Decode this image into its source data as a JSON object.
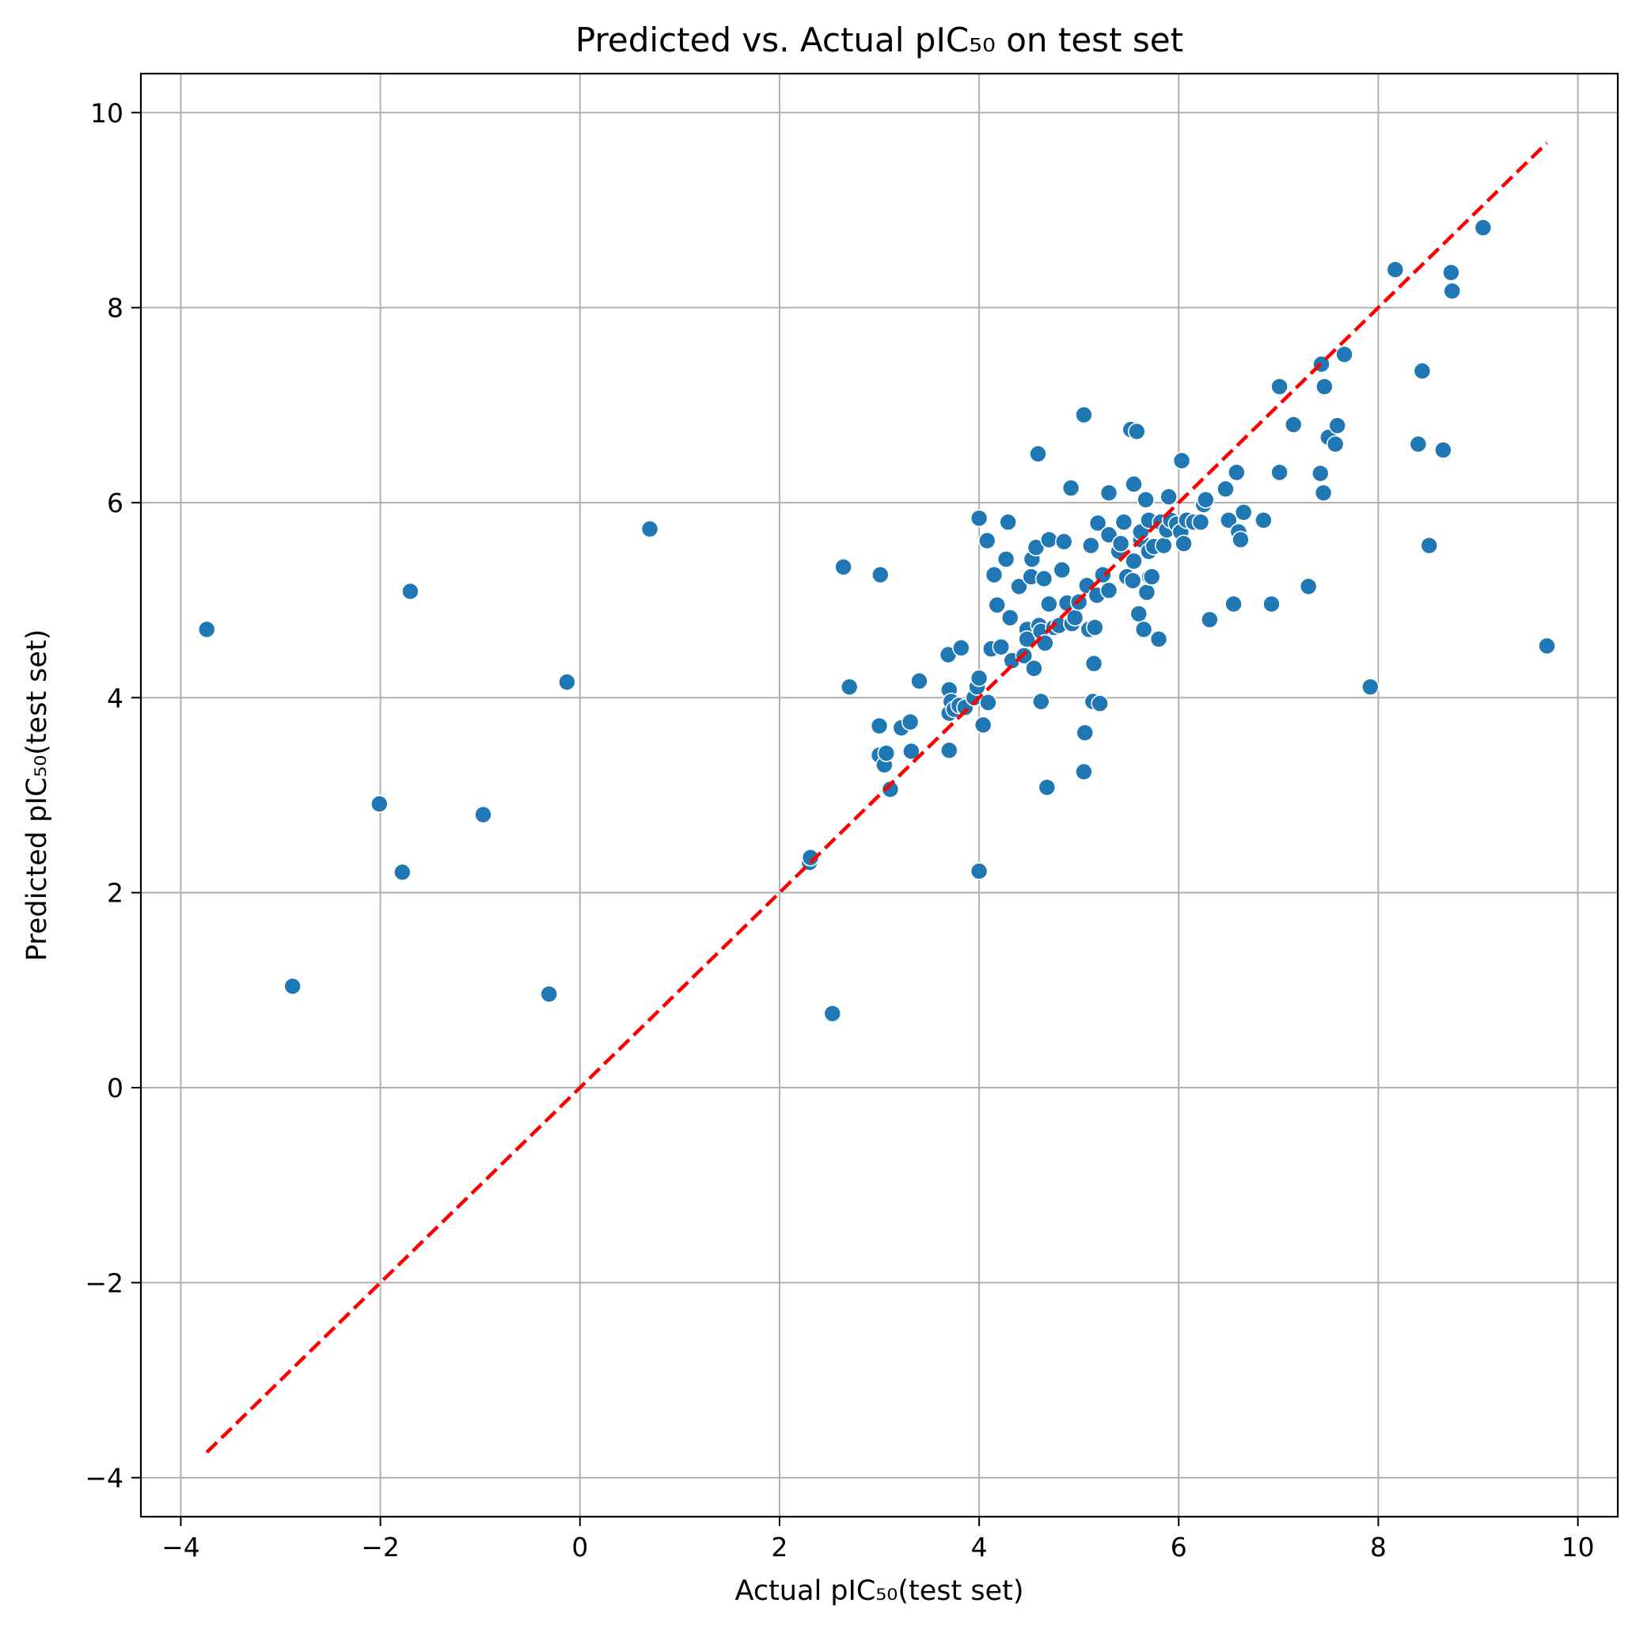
{
  "chart_data": {
    "type": "scatter",
    "title": "Predicted vs. Actual pIC₅₀ on test set",
    "xlabel": "Actual pIC₅₀(test set)",
    "ylabel": "Predicted pIC₅₀(test set)",
    "xlim": [
      -4.4,
      10.4
    ],
    "ylim": [
      -4.4,
      10.4
    ],
    "xticks": [
      -4,
      -2,
      0,
      2,
      4,
      6,
      8,
      10
    ],
    "yticks": [
      -4,
      -2,
      0,
      2,
      4,
      6,
      8,
      10
    ],
    "xtick_labels": [
      "−4",
      "−2",
      "0",
      "2",
      "4",
      "6",
      "8",
      "10"
    ],
    "ytick_labels": [
      "−4",
      "−2",
      "0",
      "2",
      "4",
      "6",
      "8",
      "10"
    ],
    "grid": true,
    "marker_color": "#1f77b4",
    "reference_line": {
      "style": "dashed",
      "color": "#ff0000",
      "x": [
        -3.74,
        9.69
      ],
      "y": [
        -3.74,
        9.69
      ]
    },
    "points": [
      [
        -3.74,
        4.7
      ],
      [
        -2.88,
        1.04
      ],
      [
        -2.01,
        2.91
      ],
      [
        -1.78,
        2.21
      ],
      [
        -1.7,
        5.09
      ],
      [
        -0.97,
        2.8
      ],
      [
        -0.31,
        0.96
      ],
      [
        -0.13,
        4.16
      ],
      [
        0.7,
        5.73
      ],
      [
        2.3,
        2.31
      ],
      [
        2.31,
        2.36
      ],
      [
        2.53,
        0.76
      ],
      [
        2.64,
        5.34
      ],
      [
        2.7,
        4.11
      ],
      [
        3.0,
        3.71
      ],
      [
        3.0,
        3.41
      ],
      [
        3.01,
        5.26
      ],
      [
        3.05,
        3.31
      ],
      [
        3.07,
        3.43
      ],
      [
        3.11,
        3.06
      ],
      [
        3.22,
        3.69
      ],
      [
        3.31,
        3.75
      ],
      [
        3.32,
        3.45
      ],
      [
        3.4,
        4.17
      ],
      [
        3.69,
        4.44
      ],
      [
        3.7,
        3.46
      ],
      [
        3.7,
        4.08
      ],
      [
        3.7,
        3.84
      ],
      [
        3.72,
        3.96
      ],
      [
        3.75,
        3.88
      ],
      [
        3.8,
        3.92
      ],
      [
        3.82,
        4.51
      ],
      [
        3.86,
        3.9
      ],
      [
        3.95,
        4.0
      ],
      [
        3.98,
        4.11
      ],
      [
        4.0,
        4.2
      ],
      [
        4.0,
        2.22
      ],
      [
        4.0,
        5.84
      ],
      [
        4.04,
        3.72
      ],
      [
        4.08,
        5.61
      ],
      [
        4.09,
        3.95
      ],
      [
        4.12,
        4.5
      ],
      [
        4.15,
        5.26
      ],
      [
        4.18,
        4.95
      ],
      [
        4.22,
        4.52
      ],
      [
        4.27,
        5.42
      ],
      [
        4.29,
        5.8
      ],
      [
        4.31,
        4.82
      ],
      [
        4.33,
        4.38
      ],
      [
        4.4,
        5.14
      ],
      [
        4.45,
        4.43
      ],
      [
        4.48,
        4.7
      ],
      [
        4.48,
        4.6
      ],
      [
        4.52,
        5.24
      ],
      [
        4.53,
        5.42
      ],
      [
        4.55,
        4.3
      ],
      [
        4.57,
        5.54
      ],
      [
        4.59,
        6.5
      ],
      [
        4.6,
        4.74
      ],
      [
        4.62,
        3.96
      ],
      [
        4.62,
        4.68
      ],
      [
        4.65,
        5.22
      ],
      [
        4.66,
        4.56
      ],
      [
        4.68,
        3.08
      ],
      [
        4.7,
        5.62
      ],
      [
        4.7,
        4.96
      ],
      [
        4.75,
        4.72
      ],
      [
        4.8,
        4.74
      ],
      [
        4.83,
        5.31
      ],
      [
        4.85,
        5.6
      ],
      [
        4.88,
        4.97
      ],
      [
        4.92,
        6.15
      ],
      [
        4.93,
        4.76
      ],
      [
        4.96,
        4.82
      ],
      [
        5.0,
        4.98
      ],
      [
        5.05,
        6.9
      ],
      [
        5.05,
        3.24
      ],
      [
        5.06,
        3.64
      ],
      [
        5.08,
        5.15
      ],
      [
        5.1,
        4.7
      ],
      [
        5.12,
        5.56
      ],
      [
        5.14,
        3.96
      ],
      [
        5.15,
        4.35
      ],
      [
        5.16,
        4.72
      ],
      [
        5.18,
        5.05
      ],
      [
        5.19,
        5.79
      ],
      [
        5.21,
        3.94
      ],
      [
        5.24,
        5.26
      ],
      [
        5.3,
        5.1
      ],
      [
        5.3,
        6.1
      ],
      [
        5.3,
        5.67
      ],
      [
        5.4,
        5.5
      ],
      [
        5.42,
        5.58
      ],
      [
        5.45,
        5.8
      ],
      [
        5.48,
        5.24
      ],
      [
        5.52,
        6.75
      ],
      [
        5.54,
        5.2
      ],
      [
        5.55,
        5.4
      ],
      [
        5.55,
        6.19
      ],
      [
        5.58,
        6.73
      ],
      [
        5.6,
        4.86
      ],
      [
        5.62,
        5.62
      ],
      [
        5.62,
        5.7
      ],
      [
        5.65,
        4.7
      ],
      [
        5.67,
        6.03
      ],
      [
        5.68,
        5.08
      ],
      [
        5.7,
        5.5
      ],
      [
        5.7,
        5.82
      ],
      [
        5.71,
        5.24
      ],
      [
        5.73,
        5.24
      ],
      [
        5.75,
        5.55
      ],
      [
        5.8,
        4.6
      ],
      [
        5.82,
        5.8
      ],
      [
        5.85,
        5.56
      ],
      [
        5.88,
        5.72
      ],
      [
        5.9,
        6.06
      ],
      [
        5.92,
        5.82
      ],
      [
        5.98,
        5.78
      ],
      [
        6.02,
        5.7
      ],
      [
        6.03,
        6.43
      ],
      [
        6.05,
        5.58
      ],
      [
        6.08,
        5.82
      ],
      [
        6.15,
        5.8
      ],
      [
        6.22,
        5.8
      ],
      [
        6.25,
        5.98
      ],
      [
        6.27,
        6.03
      ],
      [
        6.31,
        4.8
      ],
      [
        6.47,
        6.14
      ],
      [
        6.5,
        5.82
      ],
      [
        6.55,
        4.96
      ],
      [
        6.58,
        6.31
      ],
      [
        6.6,
        5.7
      ],
      [
        6.62,
        5.62
      ],
      [
        6.65,
        5.9
      ],
      [
        6.85,
        5.82
      ],
      [
        6.93,
        4.96
      ],
      [
        7.01,
        6.31
      ],
      [
        7.01,
        7.19
      ],
      [
        7.15,
        6.8
      ],
      [
        7.3,
        5.14
      ],
      [
        7.42,
        6.3
      ],
      [
        7.43,
        7.42
      ],
      [
        7.45,
        6.1
      ],
      [
        7.46,
        7.19
      ],
      [
        7.5,
        6.67
      ],
      [
        7.57,
        6.6
      ],
      [
        7.59,
        6.79
      ],
      [
        7.66,
        7.52
      ],
      [
        7.92,
        4.11
      ],
      [
        8.17,
        8.39
      ],
      [
        8.4,
        6.6
      ],
      [
        8.44,
        7.35
      ],
      [
        8.51,
        5.56
      ],
      [
        8.65,
        6.54
      ],
      [
        8.73,
        8.36
      ],
      [
        8.74,
        8.17
      ],
      [
        9.05,
        8.82
      ],
      [
        9.69,
        4.53
      ]
    ]
  }
}
